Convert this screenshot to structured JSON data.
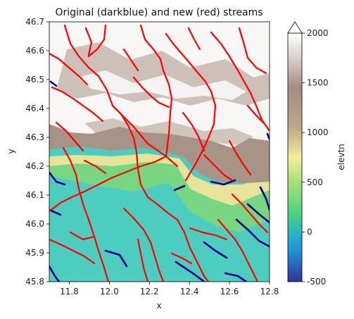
{
  "chart_data": {
    "type": "heatmap",
    "title": "Original (darkblue) and new (red) streams",
    "xlabel": "x",
    "ylabel": "y",
    "xlim": [
      11.7,
      12.8
    ],
    "ylim": [
      45.8,
      46.7
    ],
    "xticks": [
      "11.8",
      "12.0",
      "12.2",
      "12.4",
      "12.6",
      "12.8"
    ],
    "yticks": [
      "45.8",
      "45.9",
      "46.0",
      "46.1",
      "46.2",
      "46.3",
      "46.4",
      "46.5",
      "46.6",
      "46.7"
    ],
    "colorbar": {
      "label": "elevtn",
      "range": [
        -500,
        2000
      ],
      "ticks": [
        "-500",
        "0",
        "500",
        "1000",
        "1500",
        "2000"
      ],
      "extend": "max",
      "colormap": "terrain"
    },
    "series": [
      {
        "color": "#00008b"
      },
      {
        "color": "#ff0000"
      }
    ],
    "colors": {
      "highland": "#ffffff",
      "upland": "#a89486",
      "midland": "#e6e39a",
      "lowland": "#76d681",
      "plain": "#4ccdc0",
      "original_stream": "#00008b",
      "new_stream": "#ff0000"
    }
  }
}
